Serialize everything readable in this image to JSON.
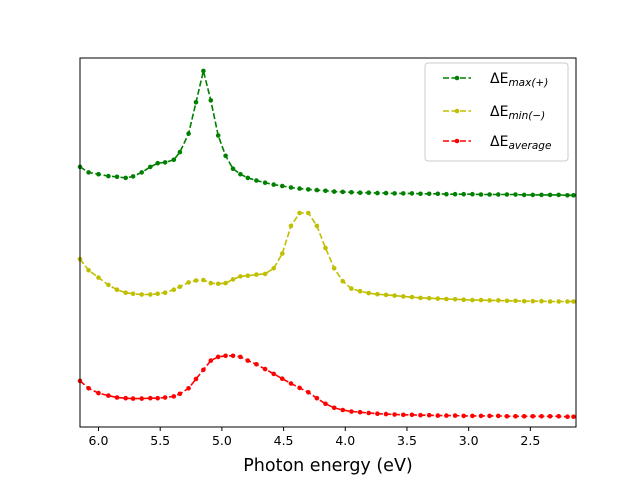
{
  "chart_data": {
    "type": "line",
    "title": "",
    "xlabel": "Photon energy (eV)",
    "ylabel": "",
    "xlim": [
      6.15,
      2.13
    ],
    "ylim": [
      0,
      1
    ],
    "x_reversed": true,
    "grid": false,
    "y_ticks_visible": false,
    "legend_position": "top-right",
    "x_ticks": [
      6.0,
      5.5,
      5.0,
      4.5,
      4.0,
      3.5,
      3.0,
      2.5
    ],
    "x_tick_labels": [
      "6.0",
      "5.5",
      "5.0",
      "4.5",
      "4.0",
      "3.5",
      "3.0",
      "2.5"
    ],
    "series": [
      {
        "name": "ΔE_max(+)",
        "label_main": "ΔE",
        "label_sub": "max(+)",
        "color": "#008000",
        "line_style": "dashed",
        "marker": "circle",
        "x": [
          6.15,
          6.08,
          6.0,
          5.92,
          5.85,
          5.78,
          5.72,
          5.65,
          5.58,
          5.52,
          5.46,
          5.39,
          5.34,
          5.27,
          5.21,
          5.15,
          5.09,
          5.03,
          4.97,
          4.91,
          4.85,
          4.79,
          4.72,
          4.65,
          4.58,
          4.51,
          4.44,
          4.37,
          4.3,
          4.23,
          4.16,
          4.09,
          4.02,
          3.95,
          3.88,
          3.81,
          3.74,
          3.67,
          3.6,
          3.53,
          3.46,
          3.39,
          3.32,
          3.25,
          3.18,
          3.11,
          3.04,
          2.97,
          2.9,
          2.83,
          2.76,
          2.69,
          2.62,
          2.55,
          2.48,
          2.41,
          2.34,
          2.27,
          2.2,
          2.15
        ],
        "y": [
          0.705,
          0.69,
          0.685,
          0.68,
          0.678,
          0.675,
          0.679,
          0.69,
          0.705,
          0.715,
          0.717,
          0.724,
          0.745,
          0.795,
          0.88,
          0.965,
          0.885,
          0.79,
          0.735,
          0.7,
          0.685,
          0.675,
          0.668,
          0.662,
          0.657,
          0.653,
          0.649,
          0.646,
          0.644,
          0.642,
          0.64,
          0.638,
          0.637,
          0.636,
          0.635,
          0.635,
          0.634,
          0.634,
          0.633,
          0.633,
          0.633,
          0.632,
          0.632,
          0.632,
          0.631,
          0.631,
          0.631,
          0.631,
          0.63,
          0.63,
          0.63,
          0.63,
          0.63,
          0.629,
          0.629,
          0.629,
          0.629,
          0.629,
          0.628,
          0.628
        ]
      },
      {
        "name": "ΔE_min(−)",
        "label_main": "ΔE",
        "label_sub": "min(−)",
        "color": "#bfbf00",
        "line_style": "dashed",
        "marker": "circle",
        "x": [
          6.15,
          6.08,
          6.0,
          5.92,
          5.85,
          5.78,
          5.72,
          5.65,
          5.58,
          5.52,
          5.46,
          5.39,
          5.34,
          5.27,
          5.21,
          5.15,
          5.09,
          5.03,
          4.97,
          4.91,
          4.85,
          4.79,
          4.72,
          4.65,
          4.58,
          4.51,
          4.44,
          4.37,
          4.3,
          4.23,
          4.16,
          4.09,
          4.02,
          3.95,
          3.88,
          3.81,
          3.74,
          3.67,
          3.6,
          3.53,
          3.46,
          3.39,
          3.32,
          3.25,
          3.18,
          3.11,
          3.04,
          2.97,
          2.9,
          2.83,
          2.76,
          2.69,
          2.62,
          2.55,
          2.48,
          2.41,
          2.34,
          2.27,
          2.2,
          2.15
        ],
        "y": [
          0.455,
          0.425,
          0.405,
          0.385,
          0.372,
          0.364,
          0.361,
          0.359,
          0.359,
          0.361,
          0.364,
          0.372,
          0.38,
          0.392,
          0.397,
          0.398,
          0.39,
          0.388,
          0.39,
          0.4,
          0.408,
          0.41,
          0.413,
          0.415,
          0.43,
          0.47,
          0.545,
          0.58,
          0.58,
          0.545,
          0.485,
          0.43,
          0.395,
          0.375,
          0.368,
          0.363,
          0.36,
          0.358,
          0.356,
          0.354,
          0.352,
          0.35,
          0.349,
          0.348,
          0.347,
          0.346,
          0.345,
          0.344,
          0.344,
          0.343,
          0.343,
          0.342,
          0.342,
          0.341,
          0.341,
          0.341,
          0.34,
          0.34,
          0.34,
          0.34
        ]
      },
      {
        "name": "ΔE_average",
        "label_main": "ΔE",
        "label_sub": "average",
        "color": "#ff0000",
        "line_style": "dashed",
        "marker": "circle",
        "x": [
          6.15,
          6.08,
          6.0,
          5.92,
          5.85,
          5.78,
          5.72,
          5.65,
          5.58,
          5.52,
          5.46,
          5.39,
          5.34,
          5.27,
          5.21,
          5.15,
          5.09,
          5.03,
          4.97,
          4.91,
          4.85,
          4.79,
          4.72,
          4.65,
          4.58,
          4.51,
          4.44,
          4.37,
          4.3,
          4.23,
          4.16,
          4.09,
          4.02,
          3.95,
          3.88,
          3.81,
          3.74,
          3.67,
          3.6,
          3.53,
          3.46,
          3.39,
          3.32,
          3.25,
          3.18,
          3.11,
          3.04,
          2.97,
          2.9,
          2.83,
          2.76,
          2.69,
          2.62,
          2.55,
          2.48,
          2.41,
          2.34,
          2.27,
          2.2,
          2.15
        ],
        "y": [
          0.125,
          0.105,
          0.092,
          0.085,
          0.08,
          0.078,
          0.077,
          0.077,
          0.078,
          0.078,
          0.08,
          0.083,
          0.09,
          0.105,
          0.13,
          0.155,
          0.18,
          0.19,
          0.193,
          0.193,
          0.19,
          0.18,
          0.17,
          0.157,
          0.144,
          0.131,
          0.118,
          0.106,
          0.094,
          0.078,
          0.063,
          0.052,
          0.046,
          0.042,
          0.04,
          0.038,
          0.036,
          0.035,
          0.034,
          0.033,
          0.033,
          0.032,
          0.032,
          0.031,
          0.031,
          0.031,
          0.03,
          0.03,
          0.03,
          0.03,
          0.03,
          0.029,
          0.029,
          0.029,
          0.029,
          0.029,
          0.029,
          0.029,
          0.028,
          0.028
        ]
      }
    ]
  }
}
